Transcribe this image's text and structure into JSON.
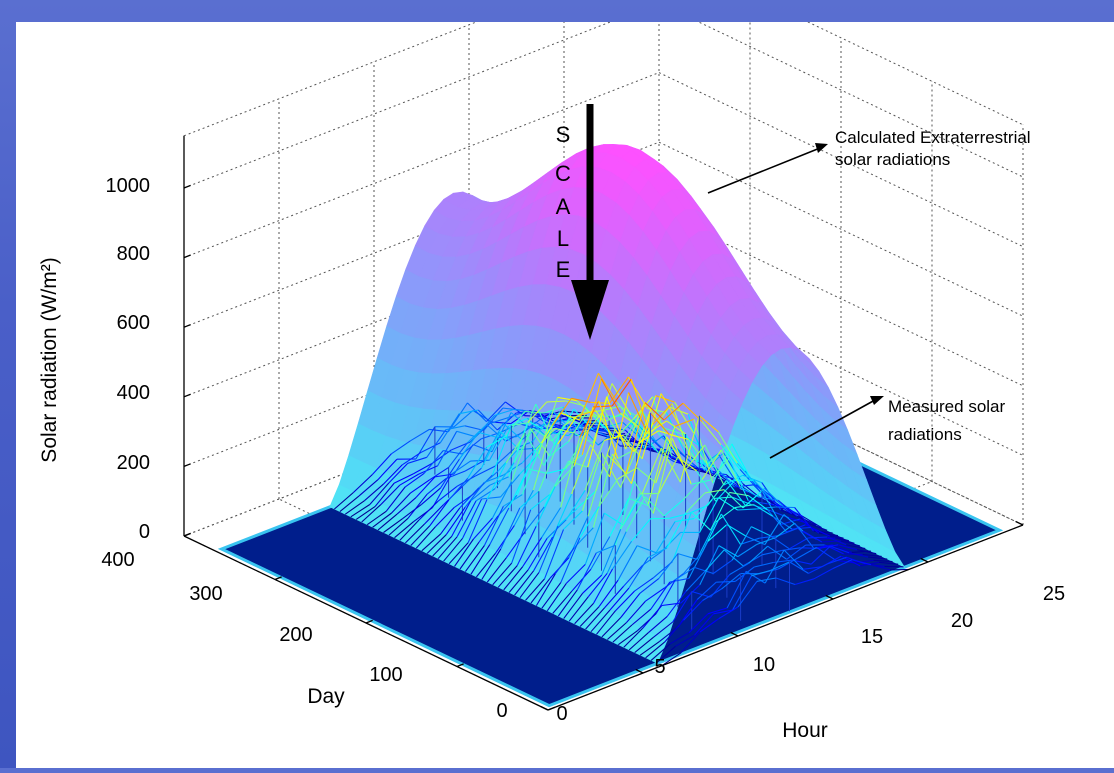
{
  "chart_data": {
    "type": "surface3d",
    "zlabel": "Solar radiation (W/m²)",
    "xlabel": "Hour",
    "ylabel": "Day",
    "hour_ticks": [
      "0",
      "5",
      "10",
      "15",
      "20",
      "25"
    ],
    "day_ticks": [
      "0",
      "100",
      "200",
      "300",
      "400"
    ],
    "z_ticks": [
      "0",
      "200",
      "400",
      "600",
      "800",
      "1000"
    ],
    "xlim": [
      0,
      25
    ],
    "ylim": [
      0,
      400
    ],
    "zlim": [
      0,
      1000
    ],
    "grid": true,
    "colormap": "jet",
    "series": [
      {
        "name": "Calculated Extraterrestrial solar radiations",
        "style": "surface",
        "peak_value": 1130,
        "peak_hour": 13,
        "peak_day": 172,
        "min_daily_peak": 760,
        "daylight_hours": [
          6,
          19
        ]
      },
      {
        "name": "Measured solar radiations",
        "style": "mesh",
        "peak_value": 530,
        "peak_hour": 13,
        "typical_noon_value": 420,
        "daylight_hours": [
          6,
          19
        ]
      }
    ],
    "annotations": {
      "scale_letters": [
        "S",
        "C",
        "A",
        "L",
        "E"
      ],
      "extraterrestrial_label": [
        "Calculated Extraterrestrial",
        "solar radiations"
      ],
      "measured_label": [
        "Measured solar",
        "radiations"
      ]
    },
    "colors": {
      "floor": "#001e8c",
      "axes": "#000000",
      "grid": "#555555",
      "arrow": "#000000",
      "background": "#ffffff",
      "slide_border": "#4a5fc8"
    }
  }
}
